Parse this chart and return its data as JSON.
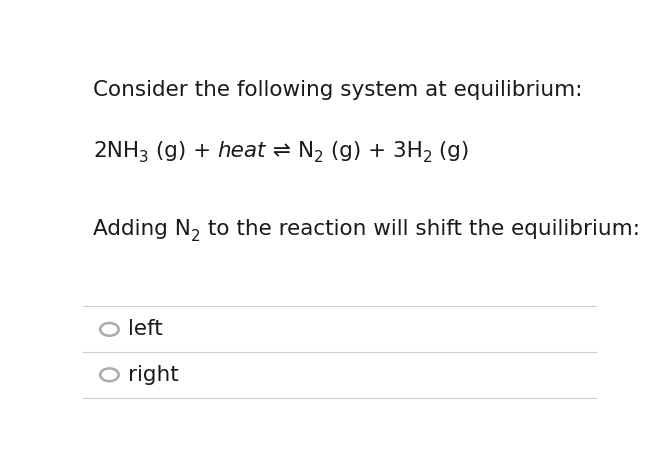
{
  "background_color": "#ffffff",
  "title_text": "Consider the following system at equilibrium:",
  "question_text_parts": [
    "Adding N",
    " to the reaction will shift the equilibrium:"
  ],
  "question_subscript": "2",
  "options": [
    "left",
    "right"
  ],
  "title_fontsize": 15.5,
  "eq_fontsize": 15.5,
  "question_fontsize": 15.5,
  "option_fontsize": 15.5,
  "text_color": "#1a1a1a",
  "circle_color": "#aaaaaa",
  "line_color": "#cccccc"
}
